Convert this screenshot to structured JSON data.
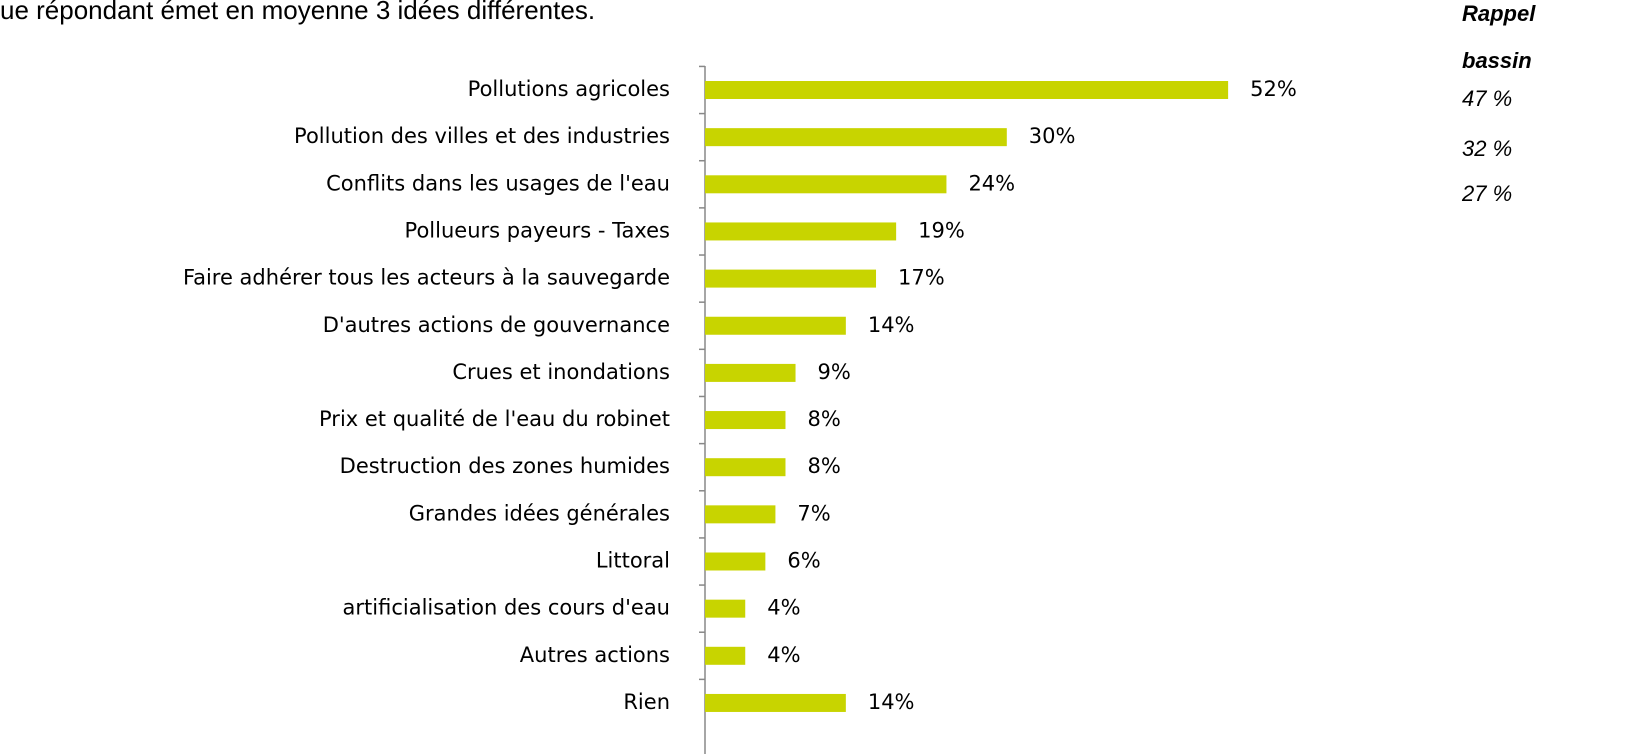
{
  "chart_data": {
    "type": "bar",
    "orientation": "horizontal",
    "subtitle": "ue répondant émet en moyenne 3 idées différentes.",
    "annotations": [
      "Rappel",
      "bassin",
      "47 %",
      "32 %",
      "27 %"
    ],
    "categories": [
      "Pollutions agricoles",
      "Pollution des villes et des industries",
      "Conflits dans les usages de l'eau",
      "Pollueurs payeurs - Taxes",
      "Faire adhérer tous les acteurs à la sauvegarde",
      "D'autres actions de gouvernance",
      "Crues et inondations",
      "Prix et qualité de l'eau du robinet",
      "Destruction des zones humides",
      "Grandes idées générales",
      "Littoral",
      "artificialisation des cours d'eau",
      "Autres actions",
      "Rien"
    ],
    "values": [
      52,
      30,
      24,
      19,
      17,
      14,
      9,
      8,
      8,
      7,
      6,
      4,
      4,
      14
    ],
    "value_labels": [
      "52%",
      "30%",
      "24%",
      "19%",
      "17%",
      "14%",
      "9%",
      "8%",
      "8%",
      "7%",
      "6%",
      "4%",
      "4%",
      "14%"
    ],
    "color": "#c8d400"
  }
}
